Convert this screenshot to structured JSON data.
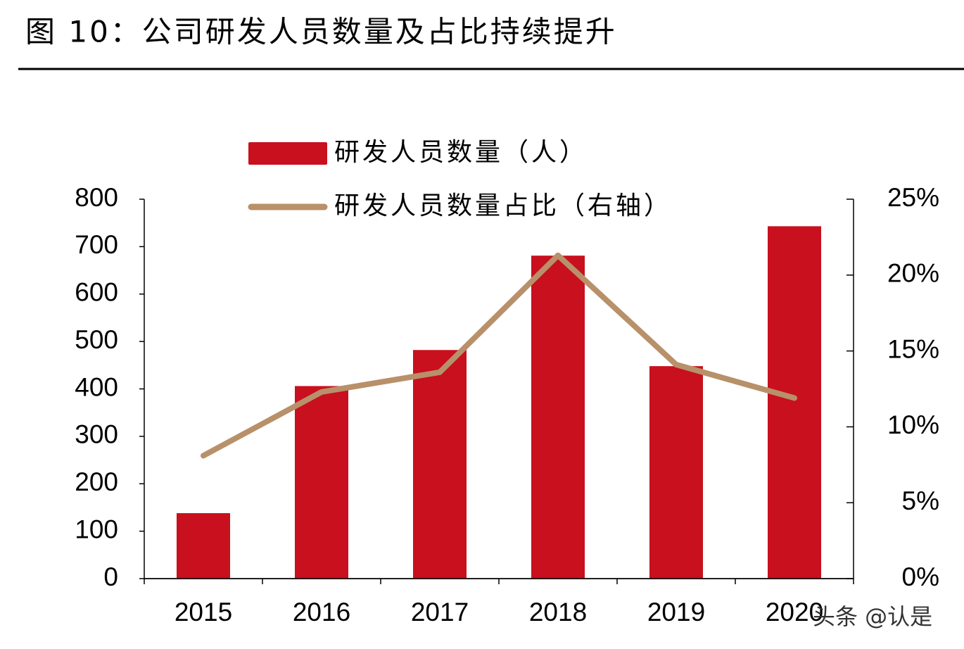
{
  "title": "图 10：公司研发人员数量及占比持续提升",
  "watermark": "头条 @认是",
  "chart_data": {
    "type": "bar_line",
    "categories": [
      "2015",
      "2016",
      "2017",
      "2018",
      "2019",
      "2020"
    ],
    "series": [
      {
        "name": "研发人员数量（人）",
        "type": "bar",
        "color": "#c8101e",
        "values": [
          138,
          406,
          482,
          681,
          448,
          743
        ]
      },
      {
        "name": "研发人员数量占比（右轴）",
        "type": "line",
        "axis": "y2",
        "color": "#b8906a",
        "values": [
          8.1,
          12.3,
          13.6,
          21.3,
          14.1,
          11.9
        ]
      }
    ],
    "ylim": [
      0,
      800
    ],
    "yticks": [
      0,
      100,
      200,
      300,
      400,
      500,
      600,
      700,
      800
    ],
    "y2lim": [
      0,
      25
    ],
    "y2ticks": [
      {
        "value": 0,
        "label": "0%"
      },
      {
        "value": 5,
        "label": "5%"
      },
      {
        "value": 10,
        "label": "10%"
      },
      {
        "value": 15,
        "label": "15%"
      },
      {
        "value": 20,
        "label": "20%"
      },
      {
        "value": 25,
        "label": "25%"
      }
    ],
    "legend": "top"
  }
}
